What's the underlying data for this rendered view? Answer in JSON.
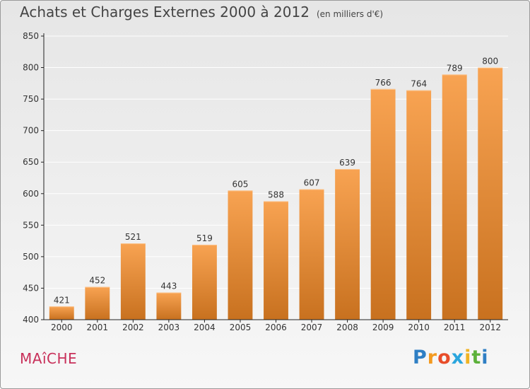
{
  "title": "Achats et Charges Externes 2000 à 2012",
  "unit_note": "(en milliers d'€)",
  "commune": "MAîCHE",
  "logo": {
    "letters": [
      "P",
      "r",
      "o",
      "x",
      "i",
      "t",
      "i"
    ],
    "colors": [
      "#2f7fc4",
      "#f39a1f",
      "#e84d2a",
      "#2aa6de",
      "#f0b322",
      "#5cb13b",
      "#2f7fc4"
    ]
  },
  "colors": {
    "bar_top": "#f8a352",
    "bar_bottom": "#c8711f",
    "axis": "#222222",
    "grid": "#ffffff",
    "text": "#333333"
  },
  "chart_data": {
    "type": "bar",
    "categories": [
      "2000",
      "2001",
      "2002",
      "2003",
      "2004",
      "2005",
      "2006",
      "2007",
      "2008",
      "2009",
      "2010",
      "2011",
      "2012"
    ],
    "values": [
      421,
      452,
      521,
      443,
      519,
      605,
      588,
      607,
      639,
      766,
      764,
      789,
      800
    ],
    "ylim": [
      400,
      850
    ],
    "yticks": [
      400,
      450,
      500,
      550,
      600,
      650,
      700,
      750,
      800,
      850
    ],
    "grid": true,
    "data_labels": true
  }
}
